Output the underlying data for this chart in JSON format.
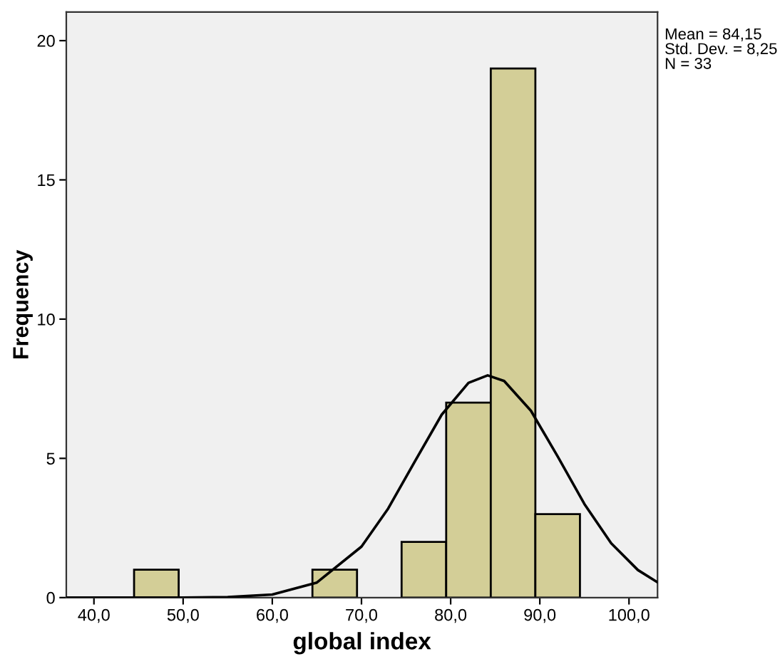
{
  "chart_data": {
    "type": "histogram",
    "xlabel": "global index",
    "ylabel": "Frequency",
    "bins": [
      44.5,
      49.5,
      54.5,
      59.5,
      64.5,
      69.5,
      74.5,
      79.5,
      84.5,
      89.5,
      94.5
    ],
    "values": [
      1,
      0,
      0,
      0,
      1,
      0,
      2,
      7,
      19,
      3
    ],
    "color": "#d3ce97",
    "series": [
      {
        "type": "line",
        "color": "#000000",
        "x": [
          36.9,
          45,
          50,
          55,
          60,
          65,
          70,
          73,
          76,
          79,
          82,
          84.15,
          86,
          89,
          92,
          95,
          98,
          101,
          103.2
        ],
        "values": [
          0,
          0,
          0,
          0.02,
          0.11,
          0.54,
          1.83,
          3.2,
          4.9,
          6.57,
          7.71,
          7.98,
          7.78,
          6.71,
          5.07,
          3.36,
          1.95,
          0.99,
          0.55
        ]
      }
    ],
    "xlim": [
      36.9,
      103.2
    ],
    "ylim": [
      0,
      21.03
    ],
    "xticks": [
      {
        "value": 40,
        "label": "40,0"
      },
      {
        "value": 50,
        "label": "50,0"
      },
      {
        "value": 60,
        "label": "60,0"
      },
      {
        "value": 70,
        "label": "70,0"
      },
      {
        "value": 80,
        "label": "80,0"
      },
      {
        "value": 90,
        "label": "90,0"
      },
      {
        "value": 100,
        "label": "100,0"
      }
    ],
    "yticks": [
      0,
      5,
      10,
      15,
      20
    ],
    "grid": false,
    "annotations": [
      "Mean = 84,15",
      "Std. Dev. = 8,25",
      "N = 33"
    ]
  }
}
